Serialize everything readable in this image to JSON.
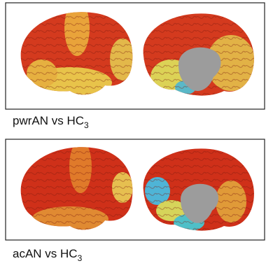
{
  "panels": [
    {
      "label": {
        "text": "pwrAN vs HC",
        "subscript": "3"
      }
    },
    {
      "label": {
        "text": "acAN vs HC",
        "subscript": "3"
      }
    }
  ]
}
